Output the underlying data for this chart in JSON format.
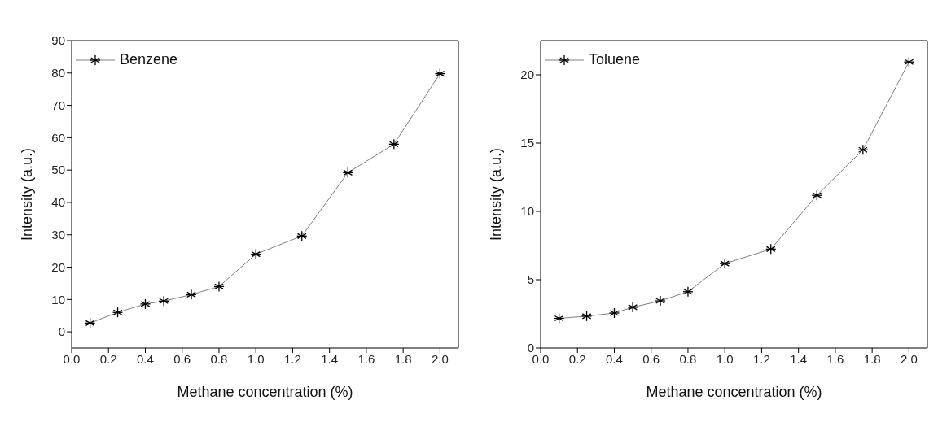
{
  "chart_data": [
    {
      "type": "line",
      "xlabel": "Methane concentration (%)",
      "ylabel": "Intensity (a.u.)",
      "x": [
        0.1,
        0.25,
        0.4,
        0.5,
        0.65,
        0.8,
        1.0,
        1.25,
        1.5,
        1.75,
        2.0
      ],
      "series": [
        {
          "name": "Benzene",
          "color": "#000000",
          "values": [
            2.7,
            6.0,
            8.6,
            9.5,
            11.5,
            14,
            24,
            29.6,
            49.2,
            58,
            79.8
          ]
        }
      ],
      "xlim": [
        0,
        2.1
      ],
      "xticks": [
        {
          "value": 0,
          "label": "0.0"
        },
        {
          "value": 0.2,
          "label": "0.2"
        },
        {
          "value": 0.4,
          "label": "0.4"
        },
        {
          "value": 0.6,
          "label": "0.6"
        },
        {
          "value": 0.8,
          "label": "0.8"
        },
        {
          "value": 1,
          "label": "1.0"
        },
        {
          "value": 1.2,
          "label": "1.2"
        },
        {
          "value": 1.4,
          "label": "1.4"
        },
        {
          "value": 1.6,
          "label": "1.6"
        },
        {
          "value": 1.8,
          "label": "1.8"
        },
        {
          "value": 2,
          "label": "2.0"
        }
      ],
      "ylim": [
        -5,
        90
      ],
      "yticks": [
        0,
        10,
        20,
        30,
        40,
        50,
        60,
        70,
        80,
        90
      ],
      "grid": false,
      "legend": "top left",
      "marker": "cross",
      "line_style": "solid"
    },
    {
      "type": "line",
      "xlabel": "Methane concentration (%)",
      "ylabel": "Intensity (a.u.)",
      "x": [
        0.1,
        0.25,
        0.4,
        0.5,
        0.65,
        0.8,
        1.0,
        1.25,
        1.5,
        1.75,
        2.0
      ],
      "series": [
        {
          "name": "Toluene",
          "color": "#000000",
          "values": [
            2.17,
            2.33,
            2.56,
            2.98,
            3.45,
            4.12,
            6.18,
            7.24,
            11.18,
            14.51,
            20.94
          ]
        }
      ],
      "xlim": [
        0,
        2.1
      ],
      "xticks": [
        {
          "value": 0,
          "label": "0.0"
        },
        {
          "value": 0.2,
          "label": "0.2"
        },
        {
          "value": 0.4,
          "label": "0.4"
        },
        {
          "value": 0.6,
          "label": "0.6"
        },
        {
          "value": 0.8,
          "label": "0.8"
        },
        {
          "value": 1,
          "label": "1.0"
        },
        {
          "value": 1.2,
          "label": "1.2"
        },
        {
          "value": 1.4,
          "label": "1.4"
        },
        {
          "value": 1.6,
          "label": "1.6"
        },
        {
          "value": 1.8,
          "label": "1.8"
        },
        {
          "value": 2,
          "label": "2.0"
        }
      ],
      "ylim": [
        0,
        22.5
      ],
      "yticks": [
        0,
        5,
        10,
        15,
        20
      ],
      "grid": false,
      "legend": "top left",
      "marker": "cross",
      "line_style": "solid"
    }
  ]
}
